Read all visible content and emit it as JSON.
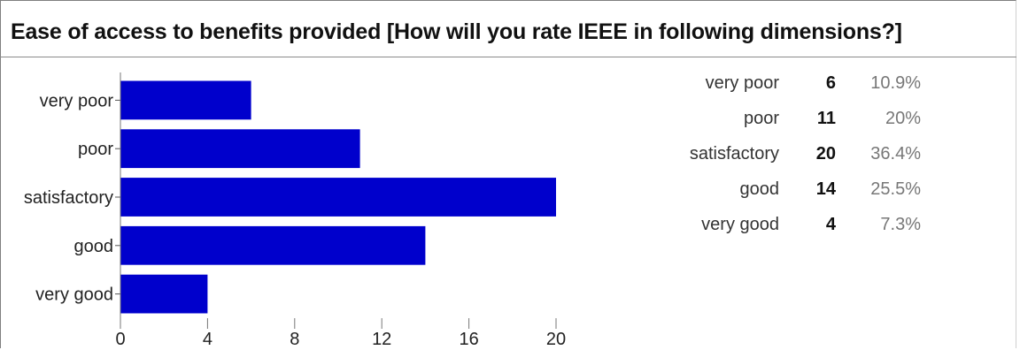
{
  "title": "Ease of access to benefits provided [How will you rate IEEE in following dimensions?]",
  "chart_data": {
    "type": "bar",
    "orientation": "horizontal",
    "title": "Ease of access to benefits provided [How will you rate IEEE in following dimensions?]",
    "categories": [
      "very poor",
      "poor",
      "satisfactory",
      "good",
      "very good"
    ],
    "values": [
      6,
      11,
      20,
      14,
      4
    ],
    "xlim": [
      0,
      20
    ],
    "xticks": [
      "0",
      "4",
      "8",
      "12",
      "16",
      "20"
    ],
    "bar_color": "#0000cc",
    "grid": false,
    "legend": "none"
  },
  "summary": [
    {
      "label": "very poor",
      "count": "6",
      "percent": "10.9%"
    },
    {
      "label": "poor",
      "count": "11",
      "percent": "20%"
    },
    {
      "label": "satisfactory",
      "count": "20",
      "percent": "36.4%"
    },
    {
      "label": "good",
      "count": "14",
      "percent": "25.5%"
    },
    {
      "label": "very good",
      "count": "4",
      "percent": "7.3%"
    }
  ]
}
